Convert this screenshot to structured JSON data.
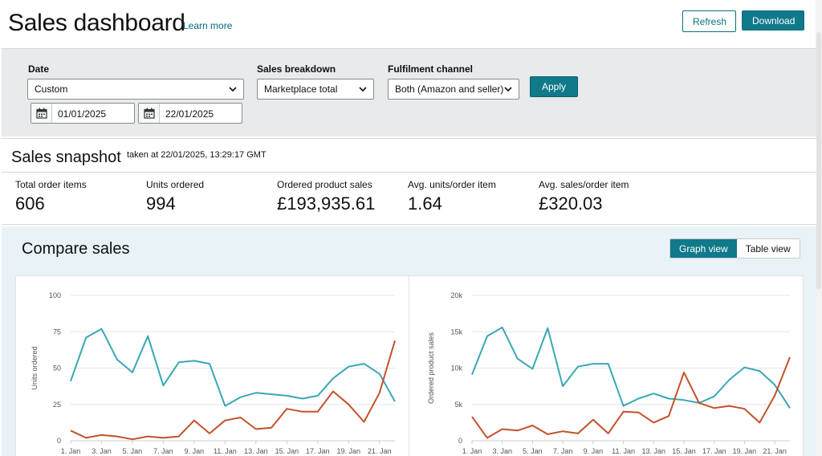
{
  "header": {
    "title": "Sales dashboard",
    "learn_more": "Learn more",
    "refresh_label": "Refresh",
    "download_label": "Download"
  },
  "filters": {
    "date_label": "Date",
    "date_select": "Custom",
    "start_date": "01/01/2025",
    "end_date": "22/01/2025",
    "breakdown_label": "Sales breakdown",
    "breakdown_value": "Marketplace total",
    "channel_label": "Fulfilment channel",
    "channel_value": "Both (Amazon and seller)",
    "apply_label": "Apply"
  },
  "snapshot": {
    "title": "Sales snapshot",
    "taken": "taken at 22/01/2025, 13:29:17 GMT",
    "metrics": [
      {
        "label": "Total order items",
        "value": "606"
      },
      {
        "label": "Units ordered",
        "value": "994"
      },
      {
        "label": "Ordered product sales",
        "value": "£193,935.61"
      },
      {
        "label": "Avg. units/order item",
        "value": "1.64"
      },
      {
        "label": "Avg. sales/order item",
        "value": "£320.03"
      }
    ]
  },
  "compare": {
    "title": "Compare sales",
    "graph_view": "Graph view",
    "table_view": "Table view"
  },
  "colors": {
    "teal_series": "#3aa7b4",
    "orange_series": "#c4512a",
    "accent": "#10798a"
  },
  "chart_data": [
    {
      "type": "line",
      "ylabel": "Units ordered",
      "ylim": [
        0,
        100
      ],
      "yticks": [
        "0",
        "25",
        "50",
        "75",
        "100"
      ],
      "x_tick_labels": [
        "1. Jan",
        "3. Jan",
        "5. Jan",
        "7. Jan",
        "9. Jan",
        "11. Jan",
        "13. Jan",
        "15. Jan",
        "17. Jan",
        "19. Jan",
        "21. Jan"
      ],
      "x": [
        1,
        2,
        3,
        4,
        5,
        6,
        7,
        8,
        9,
        10,
        11,
        12,
        13,
        14,
        15,
        16,
        17,
        18,
        19,
        20,
        21,
        22
      ],
      "series": [
        {
          "color": "#3aa7b4",
          "values": [
            41,
            71,
            77,
            56,
            47,
            72,
            38,
            54,
            55,
            53,
            24,
            30,
            33,
            32,
            31,
            29,
            31,
            43,
            51,
            53,
            46,
            27
          ]
        },
        {
          "color": "#c4512a",
          "values": [
            7,
            2,
            4,
            3,
            1,
            3,
            2,
            3,
            14,
            5,
            14,
            16,
            8,
            9,
            22,
            20,
            20,
            34,
            25,
            13,
            33,
            69
          ]
        }
      ]
    },
    {
      "type": "line",
      "ylabel": "Ordered product sales",
      "ylim": [
        0,
        20000
      ],
      "yticks": [
        "0",
        "5k",
        "10k",
        "15k",
        "20k"
      ],
      "x_tick_labels": [
        "1. Jan",
        "3. Jan",
        "5. Jan",
        "7. Jan",
        "9. Jan",
        "11. Jan",
        "13. Jan",
        "15. Jan",
        "17. Jan",
        "19. Jan",
        "21. Jan"
      ],
      "x": [
        1,
        2,
        3,
        4,
        5,
        6,
        7,
        8,
        9,
        10,
        11,
        12,
        13,
        14,
        15,
        16,
        17,
        18,
        19,
        20,
        21,
        22
      ],
      "series": [
        {
          "color": "#3aa7b4",
          "values": [
            9100,
            14400,
            15600,
            11300,
            9900,
            15500,
            7500,
            10200,
            10600,
            10600,
            4800,
            5800,
            6500,
            5800,
            5600,
            5200,
            6100,
            8400,
            10100,
            9600,
            7700,
            4500
          ]
        },
        {
          "color": "#c4512a",
          "values": [
            3300,
            400,
            1600,
            1400,
            2100,
            900,
            1300,
            1000,
            2900,
            1000,
            4000,
            3900,
            2500,
            3400,
            9400,
            5200,
            4500,
            4800,
            4400,
            2500,
            6200,
            11500
          ]
        }
      ]
    }
  ]
}
